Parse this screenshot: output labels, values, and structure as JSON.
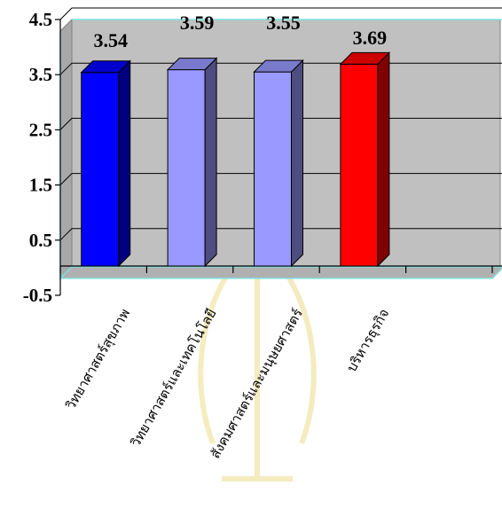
{
  "chart_data": {
    "type": "bar",
    "categories": [
      "วิทยาศาสตร์สุขภาพ",
      "วิทยาศาสตร์และเทคโนโลยี",
      "สังคมศาสตร์และมนุษยศาสตร์",
      "บริหารธุรกิจ"
    ],
    "values": [
      3.54,
      3.59,
      3.55,
      3.69
    ],
    "data_labels": [
      "3.54",
      "3.59",
      "3.55",
      "3.69"
    ],
    "ylim": [
      -0.5,
      4.5
    ],
    "yticks": [
      "4.5",
      "3.5",
      "2.5",
      "1.5",
      "0.5",
      "-0.5"
    ],
    "bar_colors": [
      "#0000ff",
      "#9999ff",
      "#9999ff",
      "#ff0000"
    ],
    "plot_background": "#c0c0c0",
    "grid": true,
    "legend": "none",
    "title": "",
    "xlabel": "",
    "ylabel": ""
  }
}
